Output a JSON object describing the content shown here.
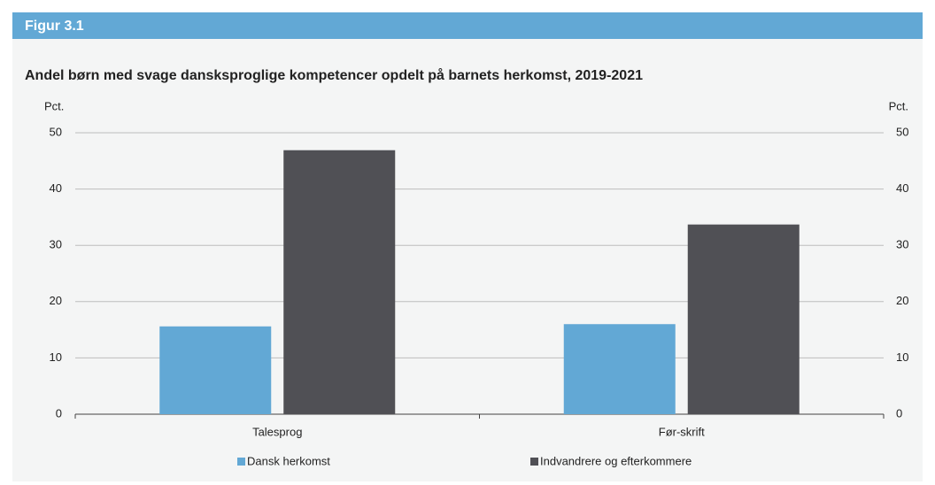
{
  "header": {
    "title": "Figur 3.1"
  },
  "chart_data": {
    "type": "bar",
    "title": "Andel børn med svage dansksproglige kompetencer opdelt på barnets herkomst, 2019-2021",
    "ylabel": "Pct.",
    "y2label": "Pct.",
    "categories": [
      "Talesprog",
      "Før-skrift"
    ],
    "series": [
      {
        "name": "Dansk herkomst",
        "color": "#62a8d5",
        "values": [
          15.6,
          16.0
        ]
      },
      {
        "name": "Indvandrere og efterkommere",
        "color": "#505055",
        "values": [
          46.9,
          33.7
        ]
      }
    ],
    "ylim": [
      0,
      50
    ],
    "yticks": [
      0,
      10,
      20,
      30,
      40,
      50
    ],
    "y2lim": [
      0,
      50
    ],
    "y2ticks": [
      0,
      10,
      20,
      30,
      40,
      50
    ],
    "grid": true,
    "legend": "bottom"
  }
}
